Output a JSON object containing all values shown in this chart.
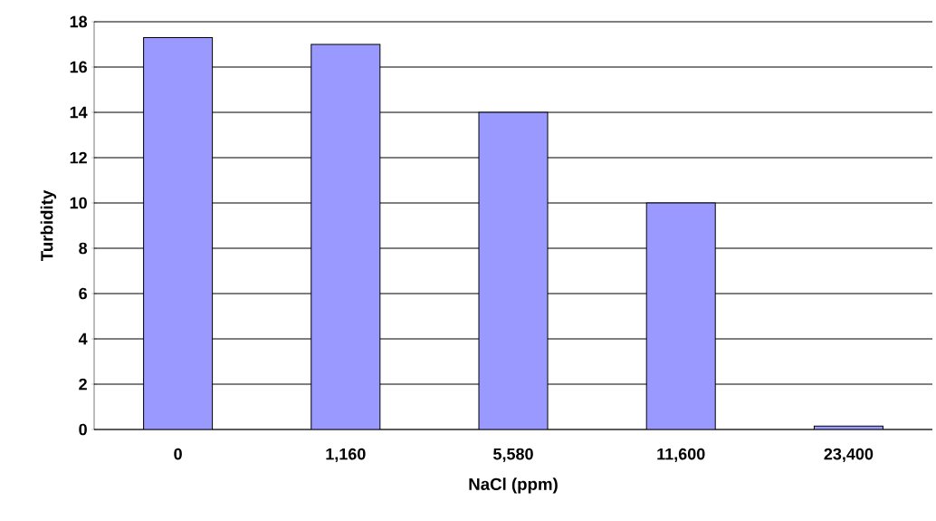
{
  "chart_data": {
    "type": "bar",
    "xlabel": "NaCl (ppm)",
    "ylabel": "Turbidity",
    "categories": [
      "0",
      "1,160",
      "5,580",
      "11,600",
      "23,400"
    ],
    "values": [
      17.3,
      17.0,
      14.0,
      10.0,
      0.15
    ],
    "color": "#9999ff",
    "ylim": [
      0,
      18
    ],
    "yticks": [
      0,
      2,
      4,
      6,
      8,
      10,
      12,
      14,
      16,
      18
    ],
    "grid": "y"
  }
}
